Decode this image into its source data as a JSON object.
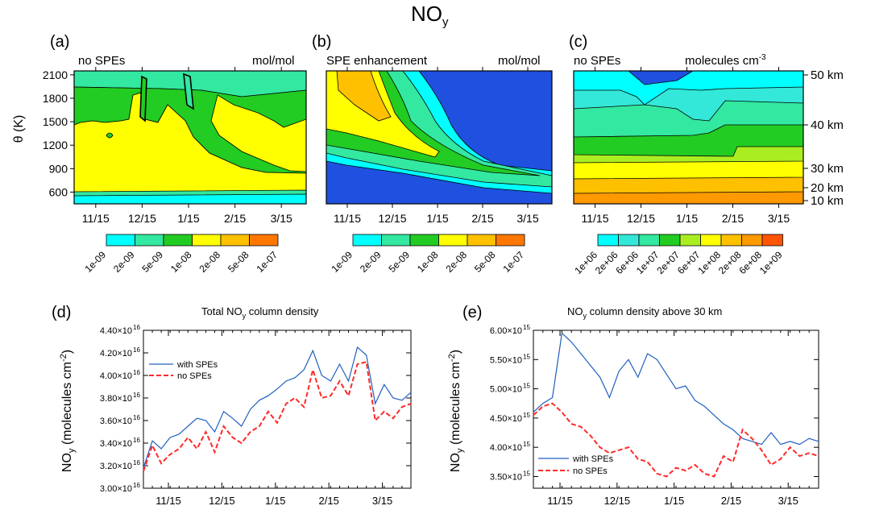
{
  "figure_title": "NO",
  "figure_title_sub": "y",
  "chart_data": [
    {
      "panel": "(a)",
      "type": "heatmap",
      "left_label": "no SPEs",
      "right_label": "mol/mol",
      "ylabel": "θ (K)",
      "yticks": [
        600,
        900,
        1200,
        1500,
        1800,
        2100
      ],
      "ylim": [
        450,
        2150
      ],
      "xticks": [
        "11/15",
        "12/15",
        "1/15",
        "2/15",
        "3/15"
      ],
      "colorbar_labels": [
        "1e-09",
        "2e-09",
        "5e-09",
        "1e-08",
        "2e-08",
        "5e-08",
        "1e-07"
      ],
      "colorbar_colors": [
        "#00ffff",
        "#33e8a0",
        "#22cc22",
        "#ffff00",
        "#ffc000",
        "#ff7700"
      ]
    },
    {
      "panel": "(b)",
      "type": "heatmap",
      "left_label": "SPE enhancement",
      "right_label": "mol/mol",
      "ylim": [
        450,
        2150
      ],
      "xticks": [
        "11/15",
        "12/15",
        "1/15",
        "2/15",
        "3/15"
      ],
      "colorbar_labels": [
        "1e-09",
        "2e-09",
        "5e-09",
        "1e-08",
        "2e-08",
        "5e-08",
        "1e-07"
      ],
      "colorbar_colors": [
        "#00ffff",
        "#33e8a0",
        "#22cc22",
        "#ffff00",
        "#ffc000",
        "#ff7700"
      ]
    },
    {
      "panel": "(c)",
      "type": "heatmap",
      "left_label": "no SPEs",
      "right_label": "molecules cm",
      "right_label_sup": "-3",
      "yticks_right": [
        "50 km",
        "40 km",
        "30 km",
        "20 km",
        "10 km"
      ],
      "xticks": [
        "11/15",
        "12/15",
        "1/15",
        "2/15",
        "3/15"
      ],
      "colorbar_labels": [
        "1e+06",
        "2e+06",
        "6e+06",
        "1e+07",
        "2e+07",
        "6e+07",
        "1e+08",
        "2e+08",
        "6e+08",
        "1e+09"
      ],
      "colorbar_colors": [
        "#00ffff",
        "#33e8d8",
        "#33e8a0",
        "#22cc22",
        "#aaee22",
        "#ffff00",
        "#ffc000",
        "#ff9900",
        "#ff5500"
      ]
    },
    {
      "panel": "(d)",
      "type": "line",
      "title": "Total NO",
      "title_sub": "y",
      "title_end": " column density",
      "ylabel": "NO",
      "ylabel_sub": "y",
      "ylabel_end": " (molecules cm",
      "ylabel_sup": "-2",
      "ylabel_close": ")",
      "ylim": [
        3e+16,
        4.4e+16
      ],
      "ytick_labels": [
        "3.00×10",
        "3.20×10",
        "3.40×10",
        "3.60×10",
        "3.80×10",
        "4.00×10",
        "4.20×10",
        "4.40×10"
      ],
      "ytick_exp": "16",
      "ytick_values": [
        3e+16,
        3.2e+16,
        3.4e+16,
        3.6e+16,
        3.8e+16,
        4e+16,
        4.2e+16,
        4.4e+16
      ],
      "xticks": [
        "11/15",
        "12/15",
        "1/15",
        "2/15",
        "3/15"
      ],
      "xlim_days": [
        0,
        150
      ],
      "x_days": [
        0,
        5,
        10,
        15,
        20,
        25,
        30,
        35,
        40,
        45,
        50,
        55,
        60,
        65,
        70,
        75,
        80,
        85,
        90,
        95,
        100,
        105,
        110,
        115,
        120,
        125,
        130,
        135,
        140,
        145,
        150
      ],
      "series": [
        {
          "name": "with SPEs",
          "color": "#2060c0",
          "dash": "none",
          "values": [
            3.18e+16,
            3.42e+16,
            3.35e+16,
            3.45e+16,
            3.48e+16,
            3.55e+16,
            3.62e+16,
            3.6e+16,
            3.5e+16,
            3.68e+16,
            3.62e+16,
            3.55e+16,
            3.7e+16,
            3.78e+16,
            3.82e+16,
            3.88e+16,
            3.95e+16,
            3.98e+16,
            4.05e+16,
            4.22e+16,
            4e+16,
            3.95e+16,
            4.1e+16,
            3.95e+16,
            4.25e+16,
            4.18e+16,
            3.75e+16,
            3.92e+16,
            3.8e+16,
            3.78e+16,
            3.85e+16
          ]
        },
        {
          "name": "no SPEs",
          "color": "#ff2a2a",
          "dash": "6,3",
          "values": [
            3.15e+16,
            3.38e+16,
            3.22e+16,
            3.3e+16,
            3.35e+16,
            3.45e+16,
            3.35e+16,
            3.5e+16,
            3.32e+16,
            3.55e+16,
            3.45e+16,
            3.4e+16,
            3.5e+16,
            3.55e+16,
            3.68e+16,
            3.58e+16,
            3.75e+16,
            3.8e+16,
            3.72e+16,
            4.05e+16,
            3.8e+16,
            3.82e+16,
            3.95e+16,
            3.82e+16,
            4.1e+16,
            4.12e+16,
            3.6e+16,
            3.68e+16,
            3.62e+16,
            3.72e+16,
            3.75e+16
          ]
        }
      ]
    },
    {
      "panel": "(e)",
      "type": "line",
      "title": "NO",
      "title_sub": "y",
      "title_end": " column density above 30 km",
      "ylabel": "NO",
      "ylabel_sub": "y",
      "ylabel_end": " (molecules cm",
      "ylabel_sup": "-2",
      "ylabel_close": ")",
      "ylim": [
        3300000000000000.0,
        6000000000000000.0
      ],
      "ytick_labels": [
        "3.50×10",
        "4.00×10",
        "4.50×10",
        "5.00×10",
        "5.50×10",
        "6.00×10"
      ],
      "ytick_exp": "15",
      "ytick_values": [
        3500000000000000.0,
        4000000000000000.0,
        4500000000000000.0,
        5000000000000000.0,
        5500000000000000.0,
        6000000000000000.0
      ],
      "xticks": [
        "11/15",
        "12/15",
        "1/15",
        "2/15",
        "3/15"
      ],
      "xlim_days": [
        0,
        150
      ],
      "x_days": [
        0,
        5,
        10,
        15,
        20,
        25,
        30,
        35,
        40,
        45,
        50,
        55,
        60,
        65,
        70,
        75,
        80,
        85,
        90,
        95,
        100,
        105,
        110,
        115,
        120,
        125,
        130,
        135,
        140,
        145,
        150
      ],
      "series": [
        {
          "name": "with SPEs",
          "color": "#2060c0",
          "dash": "none",
          "values": [
            4600000000000000.0,
            4750000000000000.0,
            4850000000000000.0,
            5950000000000000.0,
            5800000000000000.0,
            5600000000000000.0,
            5400000000000000.0,
            5200000000000000.0,
            4850000000000000.0,
            5300000000000000.0,
            5500000000000000.0,
            5200000000000000.0,
            5600000000000000.0,
            5500000000000000.0,
            5250000000000000.0,
            5000000000000000.0,
            5050000000000000.0,
            4800000000000000.0,
            4700000000000000.0,
            4550000000000000.0,
            4400000000000000.0,
            4300000000000000.0,
            4150000000000000.0,
            4100000000000000.0,
            4050000000000000.0,
            4250000000000000.0,
            4050000000000000.0,
            4100000000000000.0,
            4050000000000000.0,
            4150000000000000.0,
            4100000000000000.0
          ]
        },
        {
          "name": "no SPEs",
          "color": "#ff2a2a",
          "dash": "6,3",
          "values": [
            4550000000000000.0,
            4700000000000000.0,
            4750000000000000.0,
            4600000000000000.0,
            4400000000000000.0,
            4350000000000000.0,
            4200000000000000.0,
            4000000000000000.0,
            3900000000000000.0,
            3950000000000000.0,
            4000000000000000.0,
            3800000000000000.0,
            3750000000000000.0,
            3550000000000000.0,
            3500000000000000.0,
            3650000000000000.0,
            3600000000000000.0,
            3700000000000000.0,
            3550000000000000.0,
            3500000000000000.0,
            3850000000000000.0,
            3750000000000000.0,
            4300000000000000.0,
            4150000000000000.0,
            3950000000000000.0,
            3700000000000000.0,
            3800000000000000.0,
            4000000000000000.0,
            3850000000000000.0,
            3900000000000000.0,
            3850000000000000.0
          ]
        }
      ]
    }
  ]
}
